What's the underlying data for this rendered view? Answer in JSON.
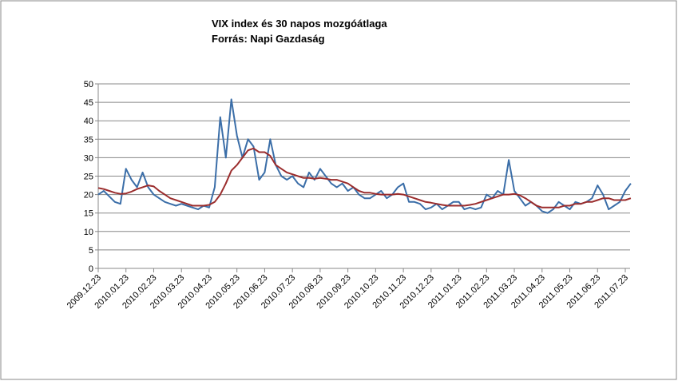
{
  "chart_data": {
    "type": "line",
    "title": "VIX index és 30 napos mozgóátlaga",
    "subtitle": "Forrás: Napi Gazdaság",
    "categories": [
      "2009.12.23",
      null,
      null,
      null,
      null,
      "2010.01.23",
      null,
      null,
      null,
      null,
      "2010.02.23",
      null,
      null,
      null,
      null,
      "2010.03.23",
      null,
      null,
      null,
      null,
      "2010.04.23",
      null,
      null,
      null,
      null,
      "2010.05.23",
      null,
      null,
      null,
      null,
      "2010.06.23",
      null,
      null,
      null,
      null,
      "2010.07.23",
      null,
      null,
      null,
      null,
      "2010.08.23",
      null,
      null,
      null,
      null,
      "2010.09.23",
      null,
      null,
      null,
      null,
      "2010.10.23",
      null,
      null,
      null,
      null,
      "2010.11.23",
      null,
      null,
      null,
      null,
      "2010.12.23",
      null,
      null,
      null,
      null,
      "2011.01.23",
      null,
      null,
      null,
      null,
      "2011.02.23",
      null,
      null,
      null,
      null,
      "2011.03.23",
      null,
      null,
      null,
      null,
      "2011.04.23",
      null,
      null,
      null,
      null,
      "2011.05.23",
      null,
      null,
      null,
      null,
      "2011.06.23",
      null,
      null,
      null,
      null,
      "2011.07.23",
      null
    ],
    "series": [
      {
        "color": "#3b6ea8",
        "values": [
          20,
          21,
          19.5,
          18,
          17.5,
          27,
          24,
          22,
          26,
          22,
          20,
          19,
          18,
          17.5,
          17,
          17.5,
          17,
          16.5,
          16,
          17,
          16.5,
          22,
          41,
          30,
          45.8,
          36,
          30,
          35,
          33,
          24,
          26,
          35,
          28,
          25,
          24,
          25,
          23,
          22,
          26,
          24,
          27,
          25,
          23,
          22,
          23,
          21,
          22,
          20,
          19,
          19,
          20,
          21,
          19,
          20,
          22,
          23,
          18,
          18,
          17.5,
          16,
          16.5,
          17.5,
          16,
          17,
          18,
          18,
          16,
          16.5,
          16,
          16.5,
          20,
          19,
          21,
          20,
          29.4,
          21,
          19,
          17,
          18,
          17,
          15.5,
          15,
          16,
          18,
          17,
          16,
          18,
          17.5,
          18,
          19,
          22.5,
          20,
          16,
          17,
          18,
          21,
          23
        ]
      },
      {
        "color": "#9b2d2d",
        "values": [
          21.8,
          21.5,
          21,
          20.5,
          20.2,
          20.3,
          20.8,
          21.5,
          22,
          22.5,
          22.2,
          21,
          20,
          19,
          18.5,
          18,
          17.5,
          17,
          17,
          17,
          17.2,
          18,
          20,
          23,
          26.5,
          28,
          30,
          32,
          32.5,
          31.5,
          31.5,
          30.5,
          28,
          27,
          26,
          25.5,
          25,
          24.5,
          24.5,
          24.3,
          24.5,
          24.3,
          24,
          24,
          23.5,
          23,
          22,
          21,
          20.5,
          20.5,
          20.2,
          20,
          20,
          20,
          20.2,
          20,
          19.5,
          19,
          18.5,
          18,
          17.8,
          17.5,
          17.2,
          17,
          17,
          17,
          17,
          17.2,
          17.5,
          18,
          18.5,
          19,
          19.5,
          20,
          20,
          20.2,
          19.8,
          19,
          18,
          17,
          16.5,
          16.5,
          16.5,
          16.5,
          17,
          17,
          17.5,
          17.5,
          18,
          18,
          18.5,
          19,
          19,
          18.5,
          18.5,
          18.5,
          19
        ]
      }
    ],
    "ylim": [
      0,
      50
    ],
    "yticks": [
      0,
      5,
      10,
      15,
      20,
      25,
      30,
      35,
      40,
      45,
      50
    ],
    "grid": true
  }
}
